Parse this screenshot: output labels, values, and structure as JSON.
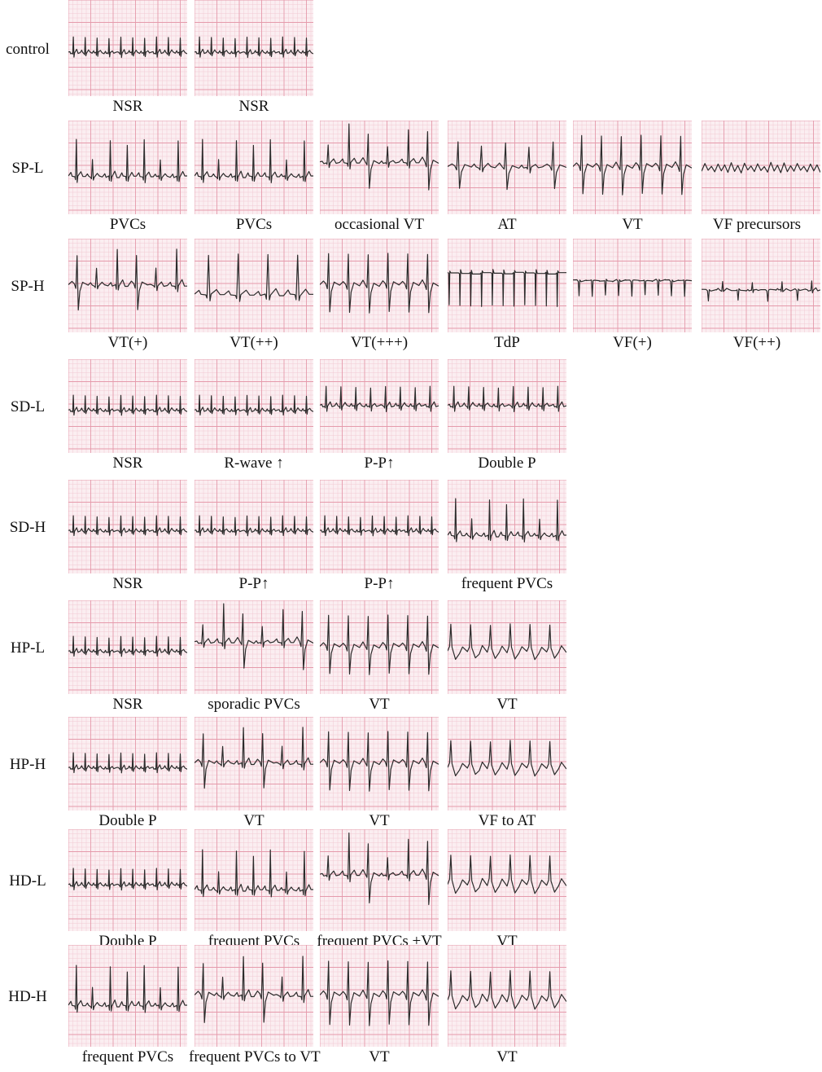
{
  "grid": {
    "paper": "#fbeef1",
    "minor": "#f2c9d2",
    "major": "#e59aab",
    "trace": "#2b2b2b"
  },
  "rows": [
    {
      "label": "control",
      "panels": [
        {
          "caption": "NSR",
          "rhythm": "nsr-small"
        },
        {
          "caption": "NSR",
          "rhythm": "nsr-small"
        }
      ]
    },
    {
      "label": "SP-L",
      "panels": [
        {
          "caption": "PVCs",
          "rhythm": "pvc-tall"
        },
        {
          "caption": "PVCs",
          "rhythm": "pvc-tall"
        },
        {
          "caption": "occasional VT",
          "rhythm": "occasional-vt"
        },
        {
          "caption": "AT",
          "rhythm": "at"
        },
        {
          "caption": "VT",
          "rhythm": "vt-biphasic"
        },
        {
          "caption": "VF precursors",
          "rhythm": "vf-precursor"
        }
      ]
    },
    {
      "label": "SP-H",
      "panels": [
        {
          "caption": "VT(+)",
          "rhythm": "vt-plus"
        },
        {
          "caption": "VT(++)",
          "rhythm": "vt-tall-sparse"
        },
        {
          "caption": "VT(+++)",
          "rhythm": "vt-biphasic"
        },
        {
          "caption": "TdP",
          "rhythm": "tdp"
        },
        {
          "caption": "VF(+)",
          "rhythm": "vf-down"
        },
        {
          "caption": "VF(++)",
          "rhythm": "vf-low"
        }
      ]
    },
    {
      "label": "SD-L",
      "panels": [
        {
          "caption": "NSR",
          "rhythm": "nsr-small"
        },
        {
          "caption": "R-wave ↑",
          "rhythm": "nsr-small"
        },
        {
          "caption": "P-P↑",
          "rhythm": "nsr-medium"
        },
        {
          "caption": "Double P",
          "rhythm": "nsr-medium"
        }
      ]
    },
    {
      "label": "SD-H",
      "panels": [
        {
          "caption": "NSR",
          "rhythm": "nsr-small"
        },
        {
          "caption": "P-P↑",
          "rhythm": "nsr-small"
        },
        {
          "caption": "P-P↑",
          "rhythm": "nsr-small"
        },
        {
          "caption": "frequent PVCs",
          "rhythm": "pvc-tall"
        }
      ]
    },
    {
      "label": "HP-L",
      "panels": [
        {
          "caption": "NSR",
          "rhythm": "nsr-small"
        },
        {
          "caption": "sporadic PVCs",
          "rhythm": "occasional-vt"
        },
        {
          "caption": "VT",
          "rhythm": "vt-biphasic"
        },
        {
          "caption": "VT",
          "rhythm": "vt-upright"
        }
      ]
    },
    {
      "label": "HP-H",
      "panels": [
        {
          "caption": "Double P",
          "rhythm": "nsr-small"
        },
        {
          "caption": "VT",
          "rhythm": "vt-plus"
        },
        {
          "caption": "VT",
          "rhythm": "vt-biphasic"
        },
        {
          "caption": "VF to AT",
          "rhythm": "vt-upright"
        }
      ]
    },
    {
      "label": "HD-L",
      "panels": [
        {
          "caption": "Double P",
          "rhythm": "nsr-small"
        },
        {
          "caption": "frequent PVCs",
          "rhythm": "pvc-tall"
        },
        {
          "caption": "frequent PVCs +VT",
          "rhythm": "occasional-vt"
        },
        {
          "caption": "VT",
          "rhythm": "vt-upright"
        }
      ]
    },
    {
      "label": "HD-H",
      "panels": [
        {
          "caption": "frequent PVCs",
          "rhythm": "pvc-tall"
        },
        {
          "caption": "frequent PVCs to VT",
          "rhythm": "vt-plus"
        },
        {
          "caption": "VT",
          "rhythm": "vt-biphasic"
        },
        {
          "caption": "VT",
          "rhythm": "vt-upright"
        }
      ]
    }
  ]
}
